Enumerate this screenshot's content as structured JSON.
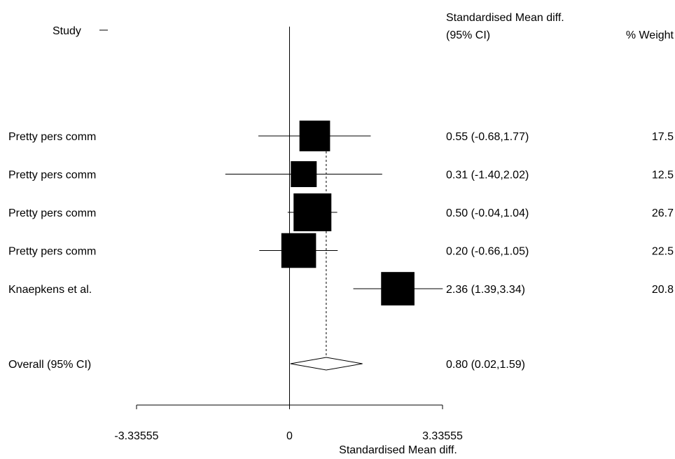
{
  "chart_data": {
    "type": "forest",
    "header": {
      "study_label": "Study",
      "effect_label_line1": "Standardised Mean diff.",
      "effect_label_line2": "(95% CI)",
      "weight_label": "% Weight"
    },
    "studies": [
      {
        "name": "Pretty pers comm",
        "estimate": 0.55,
        "ci_low": -0.68,
        "ci_high": 1.77,
        "ci_text": "0.55 (-0.68,1.77)",
        "weight": 17.5,
        "weight_text": "17.5"
      },
      {
        "name": "Pretty pers comm",
        "estimate": 0.31,
        "ci_low": -1.4,
        "ci_high": 2.02,
        "ci_text": "0.31 (-1.40,2.02)",
        "weight": 12.5,
        "weight_text": "12.5"
      },
      {
        "name": "Pretty pers comm",
        "estimate": 0.5,
        "ci_low": -0.04,
        "ci_high": 1.04,
        "ci_text": "0.50 (-0.04,1.04)",
        "weight": 26.7,
        "weight_text": "26.7"
      },
      {
        "name": "Pretty pers comm",
        "estimate": 0.2,
        "ci_low": -0.66,
        "ci_high": 1.05,
        "ci_text": "0.20 (-0.66,1.05)",
        "weight": 22.5,
        "weight_text": "22.5"
      },
      {
        "name": "Knaepkens et al.",
        "estimate": 2.36,
        "ci_low": 1.39,
        "ci_high": 3.34,
        "ci_text": "2.36 (1.39,3.34)",
        "weight": 20.8,
        "weight_text": "20.8"
      }
    ],
    "overall": {
      "name": "Overall  (95% CI)",
      "estimate": 0.8,
      "ci_low": 0.02,
      "ci_high": 1.59,
      "ci_text": "0.80 (0.02,1.59)"
    },
    "x_axis": {
      "label": "Standardised Mean diff.",
      "range": [
        -3.33555,
        3.33555
      ],
      "ticks": [
        {
          "value": -3.33555,
          "label": "-3.33555"
        },
        {
          "value": 0,
          "label": "0"
        },
        {
          "value": 3.33555,
          "label": "3.33555"
        }
      ]
    }
  }
}
